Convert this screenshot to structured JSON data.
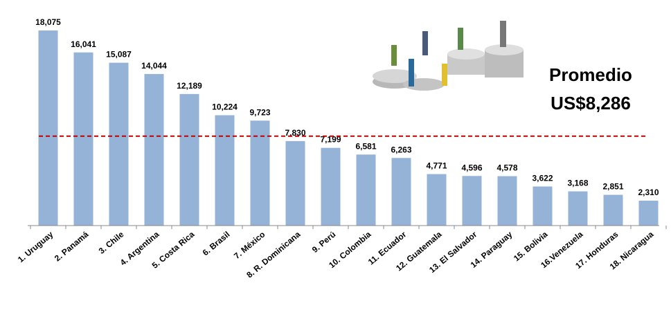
{
  "chart_data": {
    "type": "bar",
    "categories": [
      "1. Uruguay",
      "2. Panamá",
      "3. Chile",
      "4. Argentina",
      "5. Costa Rica",
      "6. Brasil",
      "7. México",
      "8. R. Dominicana",
      "9. Perú",
      "10. Colombia",
      "11. Ecuador",
      "12. Guatemala",
      "13. El Salvador",
      "14. Paraguay",
      "15. Bolivia",
      "16.Venezuela",
      "17. Honduras",
      "18. Nicaragua"
    ],
    "values": [
      18075,
      16041,
      15087,
      14044,
      12189,
      10224,
      9723,
      7830,
      7199,
      6581,
      6263,
      4771,
      4596,
      4578,
      3622,
      3168,
      2851,
      2310
    ],
    "value_labels": [
      "18,075",
      "16,041",
      "15,087",
      "14,044",
      "12,189",
      "10,224",
      "9,723",
      "7,830",
      "7,199",
      "6,581",
      "6,263",
      "4,771",
      "4,596",
      "4,578",
      "3,622",
      "3,168",
      "2,851",
      "2,310"
    ],
    "color": "#95b3d7",
    "ylim": [
      0,
      20000
    ],
    "average": {
      "value": 8286,
      "label": "Promedio",
      "value_label": "US$8,286",
      "color": "#c00000"
    }
  }
}
